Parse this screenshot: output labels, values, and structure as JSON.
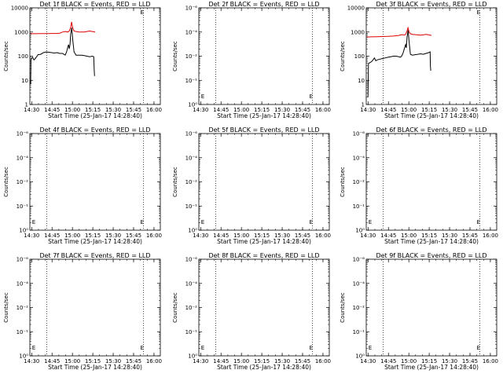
{
  "chart_data": [
    {
      "panel": 1,
      "type": "line",
      "title": "Det 1f BLACK = Events, RED = LLD",
      "xlabel": "Start Time (25-Jan-17 14:28:40)",
      "ylabel": "Counts/sec",
      "yscale": "log",
      "ylim": [
        1,
        10000
      ],
      "ytick_labels": [
        "10000",
        "1000",
        "100",
        "10",
        "1"
      ],
      "xticks": [
        "14:30",
        "14:45",
        "15:00",
        "15:15",
        "15:30",
        "15:45",
        "16:00"
      ],
      "marker_label": "E",
      "series": [
        {
          "color": "#000000",
          "points": [
            [
              0.6,
              7
            ],
            [
              0.8,
              70
            ],
            [
              1.5,
              85
            ],
            [
              2,
              90
            ],
            [
              3,
              70
            ],
            [
              4,
              80
            ],
            [
              5,
              95
            ],
            [
              6,
              115
            ],
            [
              8,
              120
            ],
            [
              10,
              140
            ],
            [
              12,
              150
            ],
            [
              14,
              145
            ],
            [
              16,
              140
            ],
            [
              18,
              135
            ],
            [
              20,
              140
            ],
            [
              22,
              130
            ],
            [
              24,
              130
            ],
            [
              25,
              120
            ],
            [
              26,
              110
            ],
            [
              27,
              150
            ],
            [
              28,
              250
            ],
            [
              28.5,
              300
            ],
            [
              29,
              200
            ],
            [
              29.5,
              280
            ],
            [
              30,
              800
            ],
            [
              30.8,
              1500
            ],
            [
              31.5,
              500
            ],
            [
              32.5,
              150
            ],
            [
              34,
              110
            ],
            [
              36,
              110
            ],
            [
              38,
              110
            ],
            [
              40,
              105
            ],
            [
              42,
              100
            ],
            [
              44,
              95
            ],
            [
              46,
              100
            ],
            [
              47,
              95
            ],
            [
              47.3,
              30
            ],
            [
              47.6,
              15
            ]
          ]
        },
        {
          "color": "#dd0000",
          "points": [
            [
              0.5,
              850
            ],
            [
              4,
              850
            ],
            [
              8,
              855
            ],
            [
              12,
              860
            ],
            [
              16,
              870
            ],
            [
              20,
              870
            ],
            [
              22,
              900
            ],
            [
              24,
              1000
            ],
            [
              26,
              1050
            ],
            [
              28,
              1000
            ],
            [
              29,
              1100
            ],
            [
              30,
              1500
            ],
            [
              30.7,
              2600
            ],
            [
              31.5,
              1500
            ],
            [
              32.5,
              1100
            ],
            [
              34,
              1050
            ],
            [
              36,
              1000
            ],
            [
              38,
              1000
            ],
            [
              40,
              1000
            ],
            [
              42,
              1050
            ],
            [
              44,
              1100
            ],
            [
              46,
              1050
            ],
            [
              48,
              1000
            ]
          ]
        }
      ]
    },
    {
      "panel": 2,
      "type": "line",
      "title": "Det 2f BLACK = Events, RED = LLD",
      "xlabel": "Start Time (25-Jan-17 14:28:40)",
      "ylabel": "Counts/sec",
      "yscale": "log",
      "ylim": [
        1,
        1000000
      ],
      "ytick_labels": [
        "10⁻⁶",
        "10⁻⁴",
        "10⁻²",
        "10⁻¹",
        "10⁰"
      ],
      "xticks": [
        "14:30",
        "14:45",
        "15:00",
        "15:15",
        "15:30",
        "15:45",
        "16:00"
      ],
      "marker_label": "E",
      "series": []
    },
    {
      "panel": 3,
      "type": "line",
      "title": "Det 3f BLACK = Events, RED = LLD",
      "xlabel": "Start Time (25-Jan-17 14:28:40)",
      "ylabel": "Counts/sec",
      "yscale": "log",
      "ylim": [
        1,
        10000
      ],
      "ytick_labels": [
        "10000",
        "1000",
        "100",
        "10",
        "1"
      ],
      "xticks": [
        "14:30",
        "14:45",
        "15:00",
        "15:15",
        "15:30",
        "15:45",
        "16:00"
      ],
      "marker_label": "E",
      "series": [
        {
          "color": "#000000",
          "points": [
            [
              1.3,
              2
            ],
            [
              1.6,
              50
            ],
            [
              3,
              55
            ],
            [
              4,
              60
            ],
            [
              5,
              70
            ],
            [
              6,
              85
            ],
            [
              7,
              65
            ],
            [
              8,
              70
            ],
            [
              10,
              75
            ],
            [
              12,
              80
            ],
            [
              14,
              85
            ],
            [
              16,
              90
            ],
            [
              18,
              95
            ],
            [
              20,
              100
            ],
            [
              22,
              100
            ],
            [
              24,
              95
            ],
            [
              25,
              90
            ],
            [
              26,
              100
            ],
            [
              27,
              130
            ],
            [
              28,
              200
            ],
            [
              29,
              300
            ],
            [
              29.5,
              220
            ],
            [
              30,
              600
            ],
            [
              30.8,
              1200
            ],
            [
              31.5,
              400
            ],
            [
              32.5,
              120
            ],
            [
              34,
              110
            ],
            [
              36,
              115
            ],
            [
              38,
              120
            ],
            [
              40,
              125
            ],
            [
              42,
              120
            ],
            [
              44,
              130
            ],
            [
              46,
              140
            ],
            [
              47,
              150
            ],
            [
              47.2,
              40
            ],
            [
              47.5,
              25
            ]
          ]
        },
        {
          "color": "#dd0000",
          "points": [
            [
              0.5,
              620
            ],
            [
              4,
              630
            ],
            [
              8,
              640
            ],
            [
              12,
              650
            ],
            [
              16,
              660
            ],
            [
              20,
              680
            ],
            [
              22,
              700
            ],
            [
              24,
              720
            ],
            [
              26,
              780
            ],
            [
              28,
              750
            ],
            [
              29,
              800
            ],
            [
              30,
              1100
            ],
            [
              30.7,
              1500
            ],
            [
              31.5,
              1000
            ],
            [
              32.5,
              850
            ],
            [
              34,
              800
            ],
            [
              36,
              780
            ],
            [
              38,
              760
            ],
            [
              40,
              740
            ],
            [
              42,
              760
            ],
            [
              44,
              800
            ],
            [
              46,
              760
            ],
            [
              48,
              720
            ]
          ]
        }
      ]
    },
    {
      "panel": 4,
      "type": "line",
      "title": "Det 4f BLACK = Events, RED = LLD",
      "xlabel": "Start Time (25-Jan-17 14:28:40)",
      "ylabel": "Counts/sec",
      "yscale": "log",
      "ylim": [
        1,
        1000000
      ],
      "ytick_labels": [
        "10⁻⁶",
        "10⁻⁴",
        "10⁻²",
        "10⁻¹",
        "10⁰"
      ],
      "xticks": [
        "14:30",
        "14:45",
        "15:00",
        "15:15",
        "15:30",
        "15:45",
        "16:00"
      ],
      "marker_label": "E",
      "series": []
    },
    {
      "panel": 5,
      "type": "line",
      "title": "Det 5f BLACK = Events, RED = LLD",
      "xlabel": "Start Time (25-Jan-17 14:28:40)",
      "ylabel": "Counts/sec",
      "yscale": "log",
      "ylim": [
        1,
        1000000
      ],
      "ytick_labels": [
        "10⁻⁶",
        "10⁻⁴",
        "10⁻²",
        "10⁻¹",
        "10⁰"
      ],
      "xticks": [
        "14:30",
        "14:45",
        "15:00",
        "15:15",
        "15:30",
        "15:45",
        "16:00"
      ],
      "marker_label": "E",
      "series": []
    },
    {
      "panel": 6,
      "type": "line",
      "title": "Det 6f BLACK = Events, RED = LLD",
      "xlabel": "Start Time (25-Jan-17 14:28:40)",
      "ylabel": "Counts/sec",
      "yscale": "log",
      "ylim": [
        1,
        1000000
      ],
      "ytick_labels": [
        "10⁻⁶",
        "10⁻⁴",
        "10⁻²",
        "10⁻¹",
        "10⁰"
      ],
      "xticks": [
        "14:30",
        "14:45",
        "15:00",
        "15:15",
        "15:30",
        "15:45",
        "16:00"
      ],
      "marker_label": "E",
      "series": []
    },
    {
      "panel": 7,
      "type": "line",
      "title": "Det 7f BLACK = Events, RED = LLD",
      "xlabel": "Start Time (25-Jan-17 14:28:40)",
      "ylabel": "Counts/sec",
      "yscale": "log",
      "ylim": [
        1,
        1000000
      ],
      "ytick_labels": [
        "10⁻⁶",
        "10⁻⁴",
        "10⁻²",
        "10⁻¹",
        "10⁰"
      ],
      "xticks": [
        "14:30",
        "14:45",
        "15:00",
        "15:15",
        "15:30",
        "15:45",
        "16:00"
      ],
      "marker_label": "E",
      "series": []
    },
    {
      "panel": 8,
      "type": "line",
      "title": "Det 8f BLACK = Events, RED = LLD",
      "xlabel": "Start Time (25-Jan-17 14:28:40)",
      "ylabel": "Counts/sec",
      "yscale": "log",
      "ylim": [
        1,
        1000000
      ],
      "ytick_labels": [
        "10⁻⁶",
        "10⁻⁴",
        "10⁻²",
        "10⁻¹",
        "10⁰"
      ],
      "xticks": [
        "14:30",
        "14:45",
        "15:00",
        "15:15",
        "15:30",
        "15:45",
        "16:00"
      ],
      "marker_label": "E",
      "series": []
    },
    {
      "panel": 9,
      "type": "line",
      "title": "Det 9f BLACK = Events, RED = LLD",
      "xlabel": "Start Time (25-Jan-17 14:28:40)",
      "ylabel": "Counts/sec",
      "yscale": "log",
      "ylim": [
        1,
        1000000
      ],
      "ytick_labels": [
        "10⁻⁶",
        "10⁻⁴",
        "10⁻²",
        "10⁻¹",
        "10⁰"
      ],
      "xticks": [
        "14:30",
        "14:45",
        "15:00",
        "15:15",
        "15:30",
        "15:45",
        "16:00"
      ],
      "marker_label": "E",
      "series": []
    }
  ]
}
